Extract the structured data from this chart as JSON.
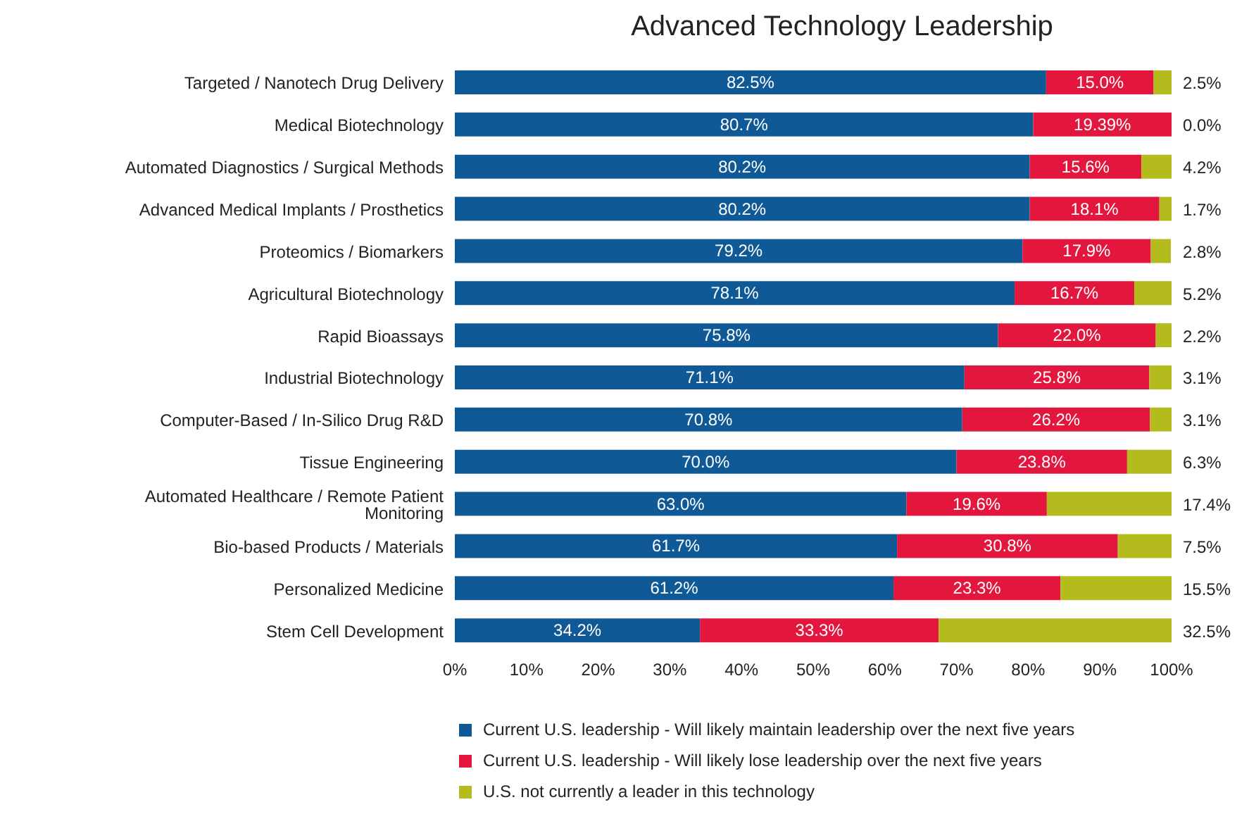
{
  "chart_data": {
    "type": "bar",
    "title": "Advanced Technology Leadership",
    "orientation": "horizontal",
    "stacked": true,
    "categories": [
      "Targeted / Nanotech Drug Delivery",
      "Medical Biotechnology",
      "Automated Diagnostics / Surgical Methods",
      "Advanced Medical Implants / Prosthetics",
      "Proteomics / Biomarkers",
      "Agricultural Biotechnology",
      "Rapid Bioassays",
      "Industrial Biotechnology",
      "Computer-Based / In-Silico Drug R&D",
      "Tissue Engineering",
      "Automated Healthcare / Remote Patient Monitoring",
      "Bio-based Products / Materials",
      "Personalized Medicine",
      "Stem Cell Development"
    ],
    "series": [
      {
        "name": "Current U.S. leadership - Will likely maintain leadership over the next five years",
        "color": "#0f5a96",
        "values": [
          82.5,
          80.7,
          80.2,
          80.2,
          79.2,
          78.1,
          75.8,
          71.1,
          70.8,
          70.0,
          63.0,
          61.7,
          61.2,
          34.2
        ],
        "value_labels": [
          "82.5%",
          "80.7%",
          "80.2%",
          "80.2%",
          "79.2%",
          "78.1%",
          "75.8%",
          "71.1%",
          "70.8%",
          "70.0%",
          "63.0%",
          "61.7%",
          "61.2%",
          "34.2%"
        ]
      },
      {
        "name": "Current U.S. leadership - Will likely lose leadership over the next five years",
        "color": "#e3173e",
        "values": [
          15.0,
          19.39,
          15.6,
          18.1,
          17.9,
          16.7,
          22.0,
          25.8,
          26.2,
          23.8,
          19.6,
          30.8,
          23.3,
          33.3
        ],
        "value_labels": [
          "15.0%",
          "19.39%",
          "15.6%",
          "18.1%",
          "17.9%",
          "16.7%",
          "22.0%",
          "25.8%",
          "26.2%",
          "23.8%",
          "19.6%",
          "30.8%",
          "23.3%",
          "33.3%"
        ]
      },
      {
        "name": "U.S. not currently a leader in this technology",
        "color": "#b3bb1d",
        "values": [
          2.5,
          0.0,
          4.2,
          1.7,
          2.8,
          5.2,
          2.2,
          3.1,
          3.1,
          6.3,
          17.4,
          7.5,
          15.5,
          32.5
        ],
        "value_labels": [
          "2.5%",
          "0.0%",
          "4.2%",
          "1.7%",
          "2.8%",
          "5.2%",
          "2.2%",
          "3.1%",
          "3.1%",
          "6.3%",
          "17.4%",
          "7.5%",
          "15.5%",
          "32.5%"
        ]
      }
    ],
    "xlim": [
      0,
      100
    ],
    "xticks": [
      {
        "value": 0,
        "label": "0%"
      },
      {
        "value": 10,
        "label": "10%"
      },
      {
        "value": 20,
        "label": "20%"
      },
      {
        "value": 30,
        "label": "30%"
      },
      {
        "value": 40,
        "label": "40%"
      },
      {
        "value": 50,
        "label": "50%"
      },
      {
        "value": 60,
        "label": "60%"
      },
      {
        "value": 70,
        "label": "70%"
      },
      {
        "value": 80,
        "label": "80%"
      },
      {
        "value": 90,
        "label": "90%"
      },
      {
        "value": 100,
        "label": "100%"
      }
    ],
    "grid": false,
    "legend": "bottom"
  }
}
